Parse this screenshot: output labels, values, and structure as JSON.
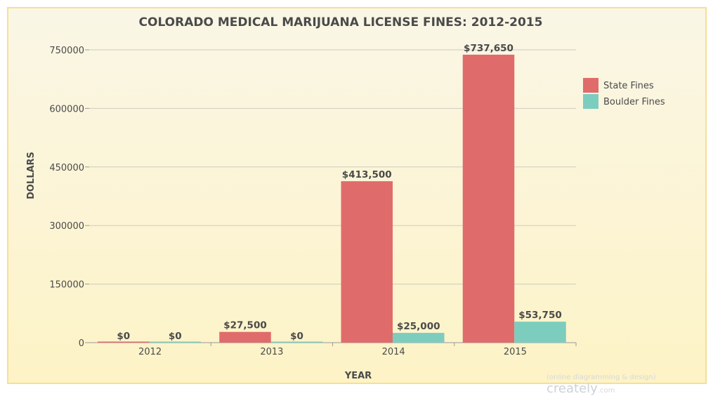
{
  "chart_data": {
    "type": "bar",
    "title": "COLORADO MEDICAL MARIJUANA LICENSE FINES: 2012-2015",
    "xlabel": "YEAR",
    "ylabel": "DOLLARS",
    "categories": [
      "2012",
      "2013",
      "2014",
      "2015"
    ],
    "ylim": [
      0,
      750000
    ],
    "yticks": [
      "0",
      "150000",
      "300000",
      "450000",
      "600000",
      "750000"
    ],
    "grid": true,
    "legend_position": "right",
    "series": [
      {
        "name": "State Fines",
        "color": "#e06b6b",
        "values": [
          0,
          27500,
          413500,
          737650
        ],
        "labels": [
          "$0",
          "$27,500",
          "$413,500",
          "$737,650"
        ]
      },
      {
        "name": "Boulder Fines",
        "color": "#7dcdbf",
        "values": [
          0,
          0,
          25000,
          53750
        ],
        "labels": [
          "$0",
          "$0",
          "$25,000",
          "$53,750"
        ]
      }
    ]
  },
  "watermark": {
    "text": "(online diagramming & design)",
    "brand": "creately",
    "suffix": ".com"
  }
}
